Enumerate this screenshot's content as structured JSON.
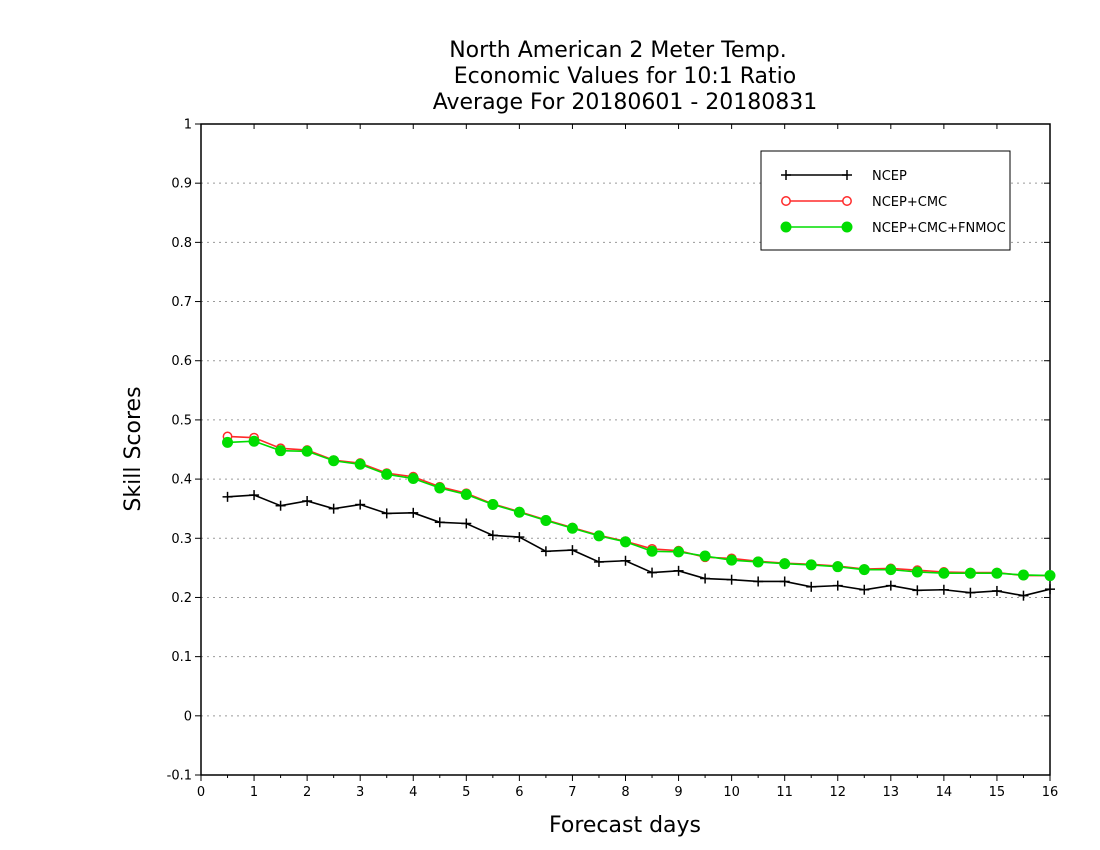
{
  "chart_data": {
    "type": "line",
    "title": [
      "North American 2 Meter Temp.",
      "Economic Values for 10:1 Ratio",
      "Average For 20180601 - 20180831"
    ],
    "xlabel": "Forecast days",
    "ylabel": "Skill Scores",
    "xlim": [
      0,
      16
    ],
    "ylim": [
      -0.1,
      1
    ],
    "xticks": [
      0,
      1,
      2,
      3,
      4,
      5,
      6,
      7,
      8,
      9,
      10,
      11,
      12,
      13,
      14,
      15,
      16
    ],
    "yticks": [
      -0.1,
      0,
      0.1,
      0.2,
      0.3,
      0.4,
      0.5,
      0.6,
      0.7,
      0.8,
      0.9,
      1
    ],
    "ytick_labels": [
      "-0.1",
      "0",
      "0.1",
      "0.2",
      "0.3",
      "0.4",
      "0.5",
      "0.6",
      "0.7",
      "0.8",
      "0.9",
      "1"
    ],
    "grid": "horizontal dotted",
    "legend_position": "top-right",
    "x": [
      0.5,
      1,
      1.5,
      2,
      2.5,
      3,
      3.5,
      4,
      4.5,
      5,
      5.5,
      6,
      6.5,
      7,
      7.5,
      8,
      8.5,
      9,
      9.5,
      10,
      10.5,
      11,
      11.5,
      12,
      12.5,
      13,
      13.5,
      14,
      14.5,
      15,
      15.5,
      16
    ],
    "series": [
      {
        "name": "NCEP",
        "color": "#000000",
        "marker": "plus",
        "values": [
          0.37,
          0.373,
          0.355,
          0.363,
          0.35,
          0.357,
          0.342,
          0.343,
          0.327,
          0.325,
          0.305,
          0.302,
          0.278,
          0.28,
          0.26,
          0.262,
          0.242,
          0.245,
          0.232,
          0.23,
          0.227,
          0.227,
          0.218,
          0.22,
          0.213,
          0.22,
          0.212,
          0.213,
          0.208,
          0.211,
          0.203,
          0.214
        ]
      },
      {
        "name": "NCEP+CMC",
        "color": "#ff2a2a",
        "marker": "open-circle",
        "values": [
          0.472,
          0.47,
          0.452,
          0.449,
          0.432,
          0.427,
          0.41,
          0.404,
          0.387,
          0.376,
          0.358,
          0.345,
          0.331,
          0.318,
          0.305,
          0.295,
          0.282,
          0.279,
          0.268,
          0.266,
          0.261,
          0.258,
          0.256,
          0.253,
          0.248,
          0.249,
          0.246,
          0.243,
          0.242,
          0.242,
          0.237,
          0.237
        ]
      },
      {
        "name": "NCEP+CMC+FNMOC",
        "color": "#00dd00",
        "marker": "filled-circle",
        "values": [
          0.462,
          0.464,
          0.448,
          0.447,
          0.431,
          0.425,
          0.408,
          0.401,
          0.385,
          0.374,
          0.357,
          0.344,
          0.33,
          0.317,
          0.304,
          0.294,
          0.278,
          0.277,
          0.27,
          0.263,
          0.26,
          0.257,
          0.255,
          0.252,
          0.247,
          0.247,
          0.243,
          0.241,
          0.241,
          0.241,
          0.238,
          0.237
        ]
      }
    ]
  }
}
